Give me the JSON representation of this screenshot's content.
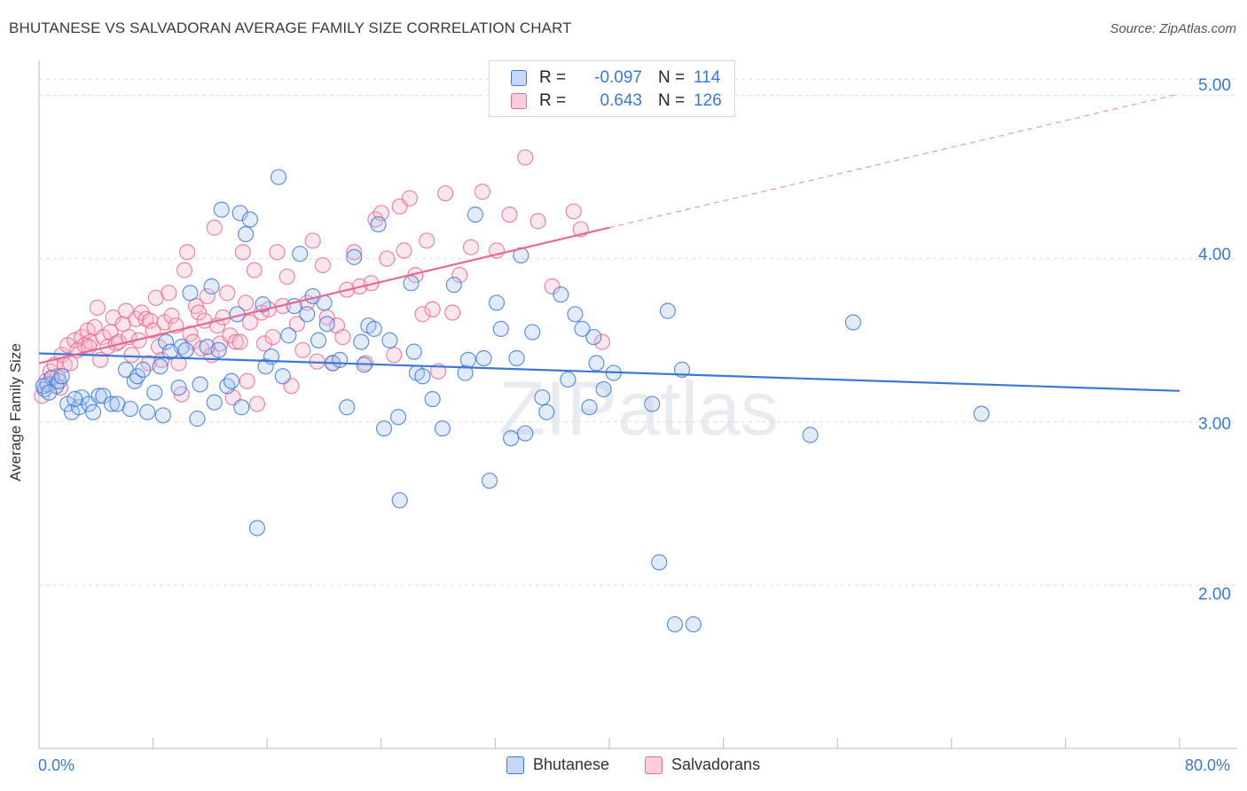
{
  "title": "BHUTANESE VS SALVADORAN AVERAGE FAMILY SIZE CORRELATION CHART",
  "source": "Source: ZipAtlas.com",
  "watermark": "ZIPatlas",
  "colors": {
    "blue": "#3a78d8",
    "blue_fill": "#a9c7f0",
    "pink": "#e8698f",
    "pink_fill": "#f5b8cb",
    "grid": "#dddddd"
  },
  "legend": {
    "rows": [
      {
        "r_label": "R =",
        "r_value": "-0.097",
        "n_label": "N =",
        "n_value": "114"
      },
      {
        "r_label": "R =",
        "r_value": "0.643",
        "n_label": "N =",
        "n_value": "126"
      }
    ]
  },
  "bottom_legend": [
    "Bhutanese",
    "Salvadorans"
  ],
  "chart_data": {
    "type": "scatter",
    "title": "BHUTANESE VS SALVADORAN AVERAGE FAMILY SIZE CORRELATION CHART",
    "xlabel": "",
    "ylabel": "Average Family Size",
    "xlim": [
      0,
      80
    ],
    "ylim": [
      1.0,
      5.15
    ],
    "x_tick_labels": [
      "0.0%",
      "80.0%"
    ],
    "y_ticks": [
      2.0,
      3.0,
      4.0,
      5.0
    ],
    "y_tick_labels": [
      "2.00",
      "3.00",
      "4.00",
      "5.00"
    ],
    "grid": true,
    "legend_position": "top-center",
    "series": [
      {
        "name": "Bhutanese",
        "color": "#3a78d8",
        "trend": {
          "x": [
            0,
            80
          ],
          "y": [
            3.42,
            3.19
          ]
        },
        "points": [
          [
            0.4,
            3.2
          ],
          [
            0.6,
            3.23
          ],
          [
            0.9,
            3.27
          ],
          [
            1.2,
            3.22
          ],
          [
            1.4,
            3.25
          ],
          [
            2,
            3.11
          ],
          [
            2.3,
            3.06
          ],
          [
            2.8,
            3.09
          ],
          [
            3,
            3.15
          ],
          [
            3.5,
            3.11
          ],
          [
            3.8,
            3.06
          ],
          [
            4.2,
            3.16
          ],
          [
            4.5,
            3.16
          ],
          [
            5.1,
            3.11
          ],
          [
            5.5,
            3.11
          ],
          [
            6.1,
            3.32
          ],
          [
            6.7,
            3.25
          ],
          [
            6.9,
            3.28
          ],
          [
            7.3,
            3.32
          ],
          [
            7.6,
            3.06
          ],
          [
            8.1,
            3.18
          ],
          [
            8.5,
            3.34
          ],
          [
            8.7,
            3.04
          ],
          [
            8.9,
            3.49
          ],
          [
            9.8,
            3.21
          ],
          [
            10,
            3.46
          ],
          [
            10.3,
            3.44
          ],
          [
            10.6,
            3.79
          ],
          [
            11.1,
            3.02
          ],
          [
            11.3,
            3.23
          ],
          [
            11.8,
            3.46
          ],
          [
            12.1,
            3.83
          ],
          [
            12.3,
            3.12
          ],
          [
            12.6,
            3.44
          ],
          [
            12.8,
            4.3
          ],
          [
            13.2,
            3.22
          ],
          [
            13.5,
            3.25
          ],
          [
            13.9,
            3.66
          ],
          [
            14.1,
            4.28
          ],
          [
            14.5,
            4.15
          ],
          [
            14.8,
            4.24
          ],
          [
            15.3,
            2.35
          ],
          [
            15.7,
            3.72
          ],
          [
            15.9,
            3.34
          ],
          [
            16.3,
            3.4
          ],
          [
            16.8,
            4.5
          ],
          [
            17.1,
            3.28
          ],
          [
            17.5,
            3.53
          ],
          [
            17.9,
            3.71
          ],
          [
            18.3,
            4.03
          ],
          [
            18.8,
            3.66
          ],
          [
            19.2,
            3.77
          ],
          [
            19.6,
            3.5
          ],
          [
            20,
            3.73
          ],
          [
            20.2,
            3.6
          ],
          [
            20.6,
            3.36
          ],
          [
            21.1,
            3.38
          ],
          [
            21.6,
            3.09
          ],
          [
            22.1,
            4.01
          ],
          [
            22.6,
            3.49
          ],
          [
            22.8,
            3.35
          ],
          [
            23.1,
            3.59
          ],
          [
            23.5,
            3.57
          ],
          [
            23.8,
            4.21
          ],
          [
            24.2,
            2.96
          ],
          [
            24.6,
            3.5
          ],
          [
            25.2,
            3.03
          ],
          [
            25.3,
            2.52
          ],
          [
            26.1,
            3.85
          ],
          [
            26.3,
            3.43
          ],
          [
            26.5,
            3.3
          ],
          [
            26.9,
            3.28
          ],
          [
            27.6,
            3.14
          ],
          [
            28.3,
            2.96
          ],
          [
            29.1,
            3.84
          ],
          [
            29.9,
            3.3
          ],
          [
            30.1,
            3.38
          ],
          [
            30.6,
            4.27
          ],
          [
            31.2,
            3.39
          ],
          [
            31.6,
            2.64
          ],
          [
            32.1,
            3.73
          ],
          [
            32.4,
            3.57
          ],
          [
            33.1,
            2.9
          ],
          [
            33.5,
            3.39
          ],
          [
            33.8,
            4.02
          ],
          [
            34.1,
            2.93
          ],
          [
            34.6,
            3.55
          ],
          [
            35.3,
            3.15
          ],
          [
            35.6,
            3.06
          ],
          [
            36.6,
            3.78
          ],
          [
            37.1,
            3.26
          ],
          [
            37.6,
            3.66
          ],
          [
            38.1,
            3.57
          ],
          [
            38.6,
            3.09
          ],
          [
            38.9,
            3.52
          ],
          [
            39.1,
            3.36
          ],
          [
            39.6,
            3.2
          ],
          [
            40.3,
            3.3
          ],
          [
            43,
            3.11
          ],
          [
            43.5,
            2.14
          ],
          [
            44.1,
            3.68
          ],
          [
            44.6,
            1.76
          ],
          [
            45.1,
            3.32
          ],
          [
            45.9,
            1.76
          ],
          [
            54.1,
            2.92
          ],
          [
            57.1,
            3.61
          ],
          [
            66.1,
            3.05
          ],
          [
            0.3,
            3.22
          ],
          [
            0.7,
            3.18
          ],
          [
            1.6,
            3.28
          ],
          [
            2.5,
            3.14
          ],
          [
            6.4,
            3.08
          ],
          [
            9.2,
            3.43
          ],
          [
            14.2,
            3.09
          ]
        ]
      },
      {
        "name": "Salvadorans",
        "color": "#e8698f",
        "trend": {
          "x": [
            0,
            40
          ],
          "y": [
            3.36,
            4.19
          ]
        },
        "trend_extension": {
          "x": [
            40,
            80
          ],
          "y": [
            4.19,
            5.01
          ]
        },
        "points": [
          [
            0.2,
            3.16
          ],
          [
            0.5,
            3.25
          ],
          [
            0.8,
            3.31
          ],
          [
            1.1,
            3.35
          ],
          [
            1.3,
            3.28
          ],
          [
            1.6,
            3.41
          ],
          [
            1.8,
            3.35
          ],
          [
            2,
            3.47
          ],
          [
            2.2,
            3.36
          ],
          [
            2.5,
            3.5
          ],
          [
            2.7,
            3.44
          ],
          [
            3,
            3.52
          ],
          [
            3.2,
            3.47
          ],
          [
            3.4,
            3.56
          ],
          [
            3.6,
            3.49
          ],
          [
            3.9,
            3.58
          ],
          [
            4.1,
            3.7
          ],
          [
            4.3,
            3.38
          ],
          [
            4.5,
            3.52
          ],
          [
            4.8,
            3.46
          ],
          [
            5,
            3.55
          ],
          [
            5.2,
            3.64
          ],
          [
            5.4,
            3.48
          ],
          [
            5.6,
            3.49
          ],
          [
            5.9,
            3.6
          ],
          [
            6.1,
            3.68
          ],
          [
            6.3,
            3.52
          ],
          [
            6.5,
            3.41
          ],
          [
            6.8,
            3.63
          ],
          [
            7,
            3.5
          ],
          [
            7.2,
            3.67
          ],
          [
            7.5,
            3.63
          ],
          [
            7.8,
            3.62
          ],
          [
            8,
            3.56
          ],
          [
            8.2,
            3.76
          ],
          [
            8.4,
            3.46
          ],
          [
            8.6,
            3.38
          ],
          [
            8.8,
            3.61
          ],
          [
            9.1,
            3.79
          ],
          [
            9.3,
            3.65
          ],
          [
            9.6,
            3.59
          ],
          [
            9.8,
            3.36
          ],
          [
            10,
            3.17
          ],
          [
            10.2,
            3.93
          ],
          [
            10.4,
            4.04
          ],
          [
            10.6,
            3.54
          ],
          [
            10.8,
            3.49
          ],
          [
            11,
            3.71
          ],
          [
            11.2,
            3.67
          ],
          [
            11.4,
            3.45
          ],
          [
            11.6,
            3.62
          ],
          [
            11.8,
            3.77
          ],
          [
            12.1,
            3.41
          ],
          [
            12.3,
            4.19
          ],
          [
            12.5,
            3.59
          ],
          [
            12.7,
            3.48
          ],
          [
            12.9,
            3.64
          ],
          [
            13.2,
            3.79
          ],
          [
            13.4,
            3.53
          ],
          [
            13.6,
            3.15
          ],
          [
            13.8,
            3.49
          ],
          [
            14.1,
            3.49
          ],
          [
            14.3,
            4.04
          ],
          [
            14.5,
            3.73
          ],
          [
            14.8,
            3.61
          ],
          [
            15.1,
            3.93
          ],
          [
            15.3,
            3.11
          ],
          [
            15.6,
            3.67
          ],
          [
            15.8,
            3.48
          ],
          [
            16.1,
            3.69
          ],
          [
            16.4,
            3.52
          ],
          [
            16.7,
            4.04
          ],
          [
            17.1,
            3.71
          ],
          [
            17.4,
            3.89
          ],
          [
            17.7,
            3.22
          ],
          [
            18.1,
            3.6
          ],
          [
            18.5,
            3.44
          ],
          [
            18.8,
            3.73
          ],
          [
            19.2,
            4.11
          ],
          [
            19.5,
            3.37
          ],
          [
            19.9,
            3.96
          ],
          [
            20.2,
            3.64
          ],
          [
            20.6,
            3.36
          ],
          [
            20.9,
            3.59
          ],
          [
            21.3,
            3.52
          ],
          [
            21.6,
            3.81
          ],
          [
            22.1,
            4.04
          ],
          [
            22.5,
            3.83
          ],
          [
            22.9,
            3.36
          ],
          [
            23.3,
            3.85
          ],
          [
            23.6,
            4.24
          ],
          [
            24,
            4.28
          ],
          [
            24.4,
            4.0
          ],
          [
            24.9,
            3.41
          ],
          [
            25.3,
            4.32
          ],
          [
            25.6,
            4.05
          ],
          [
            26,
            4.37
          ],
          [
            26.4,
            3.9
          ],
          [
            26.9,
            3.66
          ],
          [
            27.2,
            4.11
          ],
          [
            27.6,
            3.69
          ],
          [
            28,
            3.31
          ],
          [
            28.5,
            4.4
          ],
          [
            29,
            3.67
          ],
          [
            29.5,
            3.9
          ],
          [
            30.3,
            4.07
          ],
          [
            31.1,
            4.41
          ],
          [
            32.1,
            4.05
          ],
          [
            33,
            4.27
          ],
          [
            34.1,
            4.62
          ],
          [
            35,
            4.23
          ],
          [
            36,
            3.83
          ],
          [
            37.5,
            4.29
          ],
          [
            38,
            4.18
          ],
          [
            39.5,
            3.49
          ],
          [
            0.9,
            3.27
          ],
          [
            1.5,
            3.21
          ],
          [
            3.5,
            3.46
          ],
          [
            7.7,
            3.36
          ],
          [
            14.6,
            3.25
          ]
        ]
      }
    ]
  }
}
